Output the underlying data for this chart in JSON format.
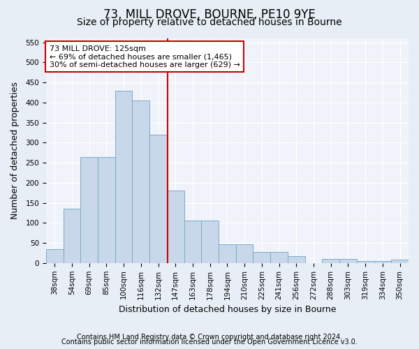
{
  "title": "73, MILL DROVE, BOURNE, PE10 9YE",
  "subtitle": "Size of property relative to detached houses in Bourne",
  "xlabel": "Distribution of detached houses by size in Bourne",
  "ylabel": "Number of detached properties",
  "categories": [
    "38sqm",
    "54sqm",
    "69sqm",
    "85sqm",
    "100sqm",
    "116sqm",
    "132sqm",
    "147sqm",
    "163sqm",
    "178sqm",
    "194sqm",
    "210sqm",
    "225sqm",
    "241sqm",
    "256sqm",
    "272sqm",
    "288sqm",
    "303sqm",
    "319sqm",
    "334sqm",
    "350sqm"
  ],
  "bar_values": [
    35,
    135,
    265,
    265,
    430,
    405,
    320,
    180,
    105,
    105,
    47,
    47,
    28,
    28,
    17,
    0,
    10,
    10,
    5,
    5,
    8
  ],
  "bar_color": "#c8d8ea",
  "bar_edge_color": "#7aaac8",
  "vline_pos": 6.55,
  "vline_color": "#cc0000",
  "annotation_line1": "73 MILL DROVE: 125sqm",
  "annotation_line2": "← 69% of detached houses are smaller (1,465)",
  "annotation_line3": "30% of semi-detached houses are larger (629) →",
  "annotation_box_color": "white",
  "annotation_box_edge": "#cc0000",
  "ylim": [
    0,
    560
  ],
  "yticks": [
    0,
    50,
    100,
    150,
    200,
    250,
    300,
    350,
    400,
    450,
    500,
    550
  ],
  "footer1": "Contains HM Land Registry data © Crown copyright and database right 2024.",
  "footer2": "Contains public sector information licensed under the Open Government Licence v3.0.",
  "bg_color": "#e8eef5",
  "plot_bg_color": "#f0f4fa",
  "title_fontsize": 12,
  "subtitle_fontsize": 10,
  "tick_fontsize": 7.5,
  "label_fontsize": 9,
  "footer_fontsize": 7,
  "annot_fontsize": 8
}
